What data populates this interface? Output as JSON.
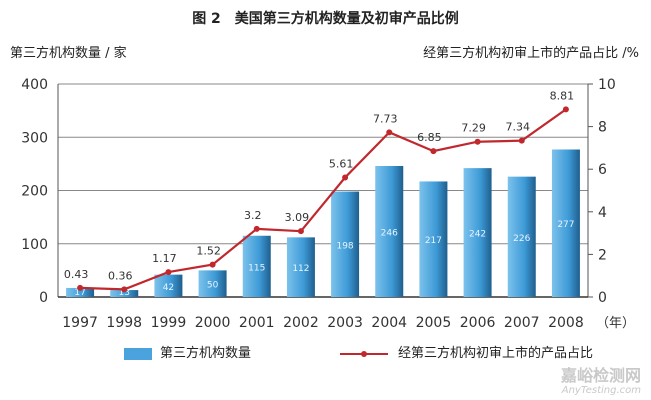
{
  "chart_data": {
    "type": "bar+line",
    "title": "图 2　美国第三方机构数量及初审产品比例",
    "ylabel_left": "第三方机构数量 / 家",
    "ylabel_right": "经第三方机构初审上市的产品占比 /%",
    "x_unit": "（年）",
    "categories": [
      "1997",
      "1998",
      "1999",
      "2000",
      "2001",
      "2002",
      "2003",
      "2004",
      "2005",
      "2006",
      "2007",
      "2008"
    ],
    "series": [
      {
        "name": "第三方机构数量",
        "type": "bar",
        "axis": "left",
        "color": "#4aa3dc",
        "values": [
          17,
          13,
          42,
          50,
          115,
          112,
          198,
          246,
          217,
          242,
          226,
          277
        ]
      },
      {
        "name": "经第三方机构初审上市的产品占比",
        "type": "line",
        "axis": "right",
        "color": "#c0282d",
        "values": [
          0.43,
          0.36,
          1.17,
          1.52,
          3.2,
          3.09,
          5.61,
          7.73,
          6.85,
          7.29,
          7.34,
          8.81
        ]
      }
    ],
    "ylim_left": [
      0,
      400
    ],
    "yticks_left": [
      0,
      100,
      200,
      300,
      400
    ],
    "ylim_right": [
      0,
      10
    ],
    "yticks_right": [
      0,
      2,
      4,
      6,
      8,
      10
    ],
    "grid": true,
    "legend": "bottom"
  },
  "watermark": {
    "line1": "嘉峪检测网",
    "line2": "AnyTesting.com"
  }
}
